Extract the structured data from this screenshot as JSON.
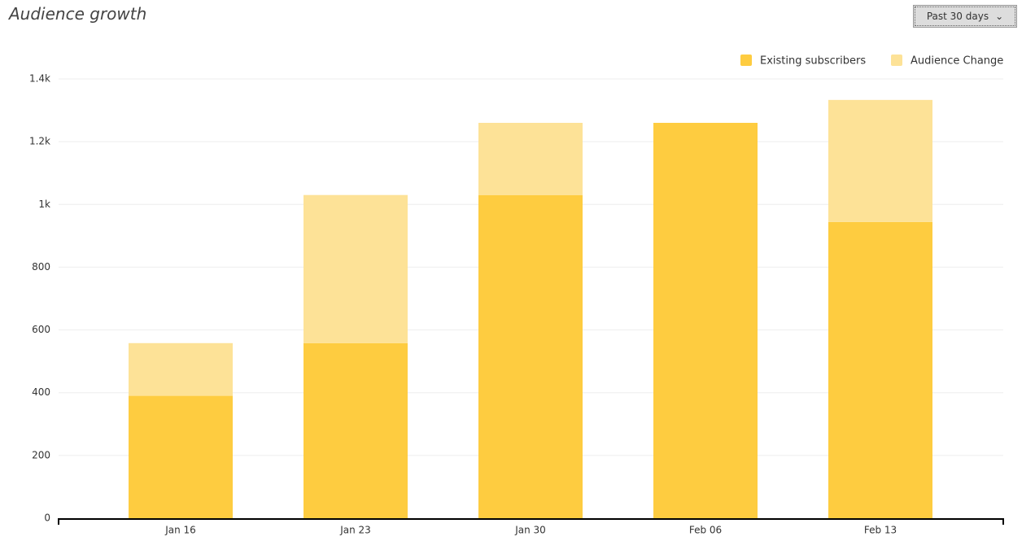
{
  "header": {
    "title": "Audience growth",
    "range_button": "Past 30 days"
  },
  "chart_data": {
    "type": "stacked-bar",
    "categories": [
      "Jan 16",
      "Jan 23",
      "Jan 30",
      "Feb 06",
      "Feb 13"
    ],
    "series": [
      {
        "name": "Existing subscribers",
        "color": "#fecc40",
        "values": [
          390,
          558,
          1030,
          1260,
          944
        ]
      },
      {
        "name": "Audience Change",
        "color": "#fde297",
        "values": [
          168,
          472,
          230,
          0,
          389
        ]
      }
    ],
    "ylim": [
      0,
      1400
    ],
    "yticks": [
      0,
      200,
      400,
      600,
      800,
      {
        "value": 1000,
        "label": "1k"
      },
      {
        "value": 1200,
        "label": "1.2k"
      },
      {
        "value": 1400,
        "label": "1.4k"
      }
    ],
    "grid": true,
    "legend": "top-right"
  }
}
